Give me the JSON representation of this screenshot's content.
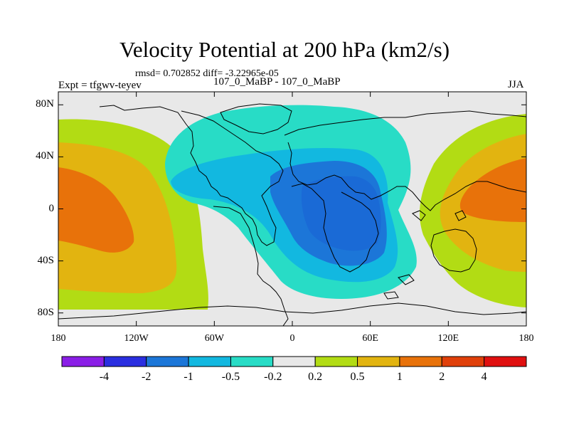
{
  "title": "Velocity Potential at 200 hPa (km2/s)",
  "stats": "rmsd= 0.702852 diff= -3.22965e-05",
  "experiment": "Expt = tfgwv-teyev",
  "subtitle": "107_0_MaBP - 107_0_MaBP",
  "season": "JJA",
  "lat_labels": [
    "80N",
    "40N",
    "0",
    "40S",
    "80S"
  ],
  "lon_labels": [
    "180",
    "120W",
    "60W",
    "0",
    "60E",
    "120E",
    "180"
  ],
  "colorbar": {
    "labels": [
      "-4",
      "-2",
      "-1",
      "-0.5",
      "-0.2",
      "0.2",
      "0.5",
      "1",
      "2",
      "4"
    ],
    "colors": [
      "#8a1ee6",
      "#2a2ee0",
      "#1c76d8",
      "#12b8e0",
      "#28dcc6",
      "#e8e8e8",
      "#b2dc14",
      "#e2b410",
      "#e8720a",
      "#e0400a",
      "#e01010"
    ]
  },
  "chart_data": {
    "type": "filled-contour-map",
    "title": "Velocity Potential at 200 hPa (km2/s)",
    "units": "km2/s",
    "levels": [
      -4,
      -2,
      -1,
      -0.5,
      -0.2,
      0.2,
      0.5,
      1,
      2,
      4
    ],
    "xlim": [
      -180,
      180
    ],
    "ylim": [
      -90,
      90
    ],
    "x_ticks": [
      "180",
      "120W",
      "60W",
      "0",
      "60E",
      "120E",
      "180"
    ],
    "y_ticks": [
      "80N",
      "40N",
      "0",
      "40S",
      "80S"
    ],
    "features": [
      {
        "sign": "negative",
        "level": "-2 to -1",
        "center_lon": 45,
        "center_lat": 0,
        "description": "strongest divergence center"
      },
      {
        "sign": "negative",
        "level": "-1 to -0.5",
        "center_lon": 35,
        "center_lat": 5
      },
      {
        "sign": "negative",
        "level": "-0.5 to -0.2",
        "center_lon": 20,
        "center_lat": 10
      },
      {
        "sign": "positive",
        "level": "1 to 2",
        "center_lon": -165,
        "center_lat": 5,
        "description": "convergence maximum, western edge"
      },
      {
        "sign": "positive",
        "level": "1 to 2",
        "center_lon": 165,
        "center_lat": 5,
        "description": "convergence maximum, eastern edge"
      }
    ]
  }
}
